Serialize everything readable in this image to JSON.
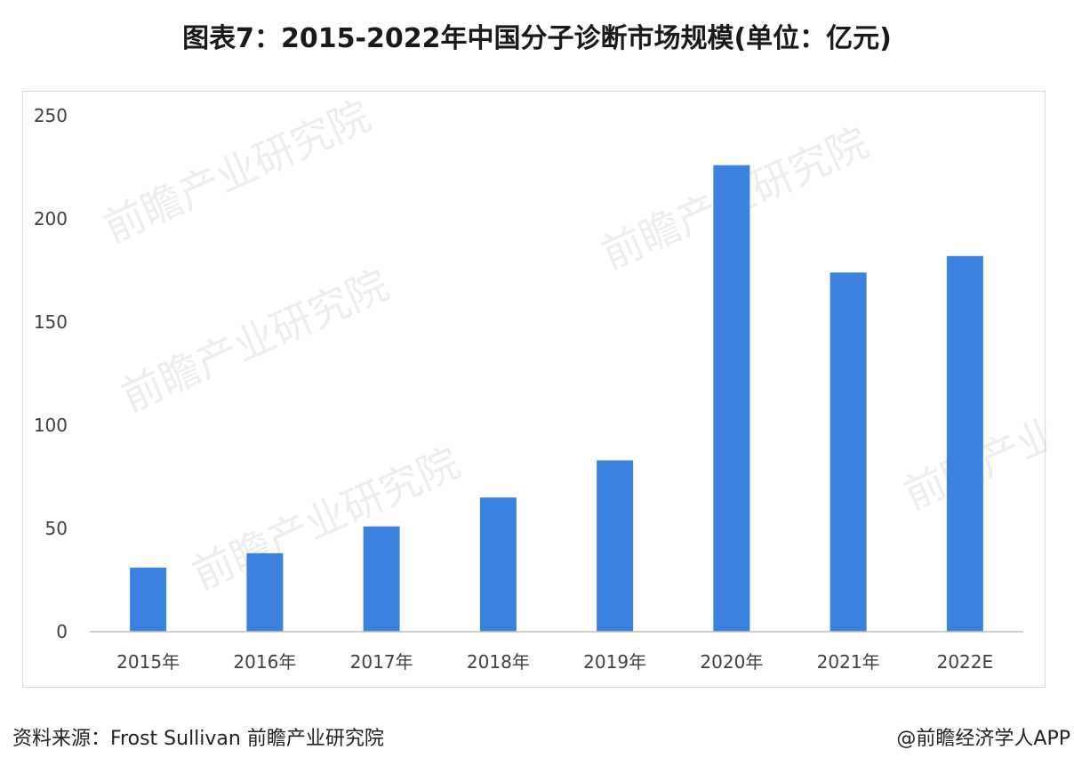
{
  "title": "图表7：2015-2022年中国分子诊断市场规模(单位：亿元)",
  "source": "资料来源：Frost Sullivan 前瞻产业研究院",
  "credit": "@前瞻经济学人APP",
  "watermark": "前瞻产业研究院",
  "colors": {
    "bar": "#3b82e0",
    "axis": "#bfbfbf",
    "tick_text": "#404040"
  },
  "chart_data": {
    "type": "bar",
    "categories": [
      "2015年",
      "2016年",
      "2017年",
      "2018年",
      "2019年",
      "2020年",
      "2021年",
      "2022E"
    ],
    "values": [
      31,
      38,
      51,
      65,
      83,
      226,
      174,
      182
    ],
    "ylim": [
      0,
      250
    ],
    "yticks": [
      0,
      50,
      100,
      150,
      200,
      250
    ],
    "grid": false,
    "legend": "none",
    "xlabel": "",
    "ylabel": ""
  }
}
